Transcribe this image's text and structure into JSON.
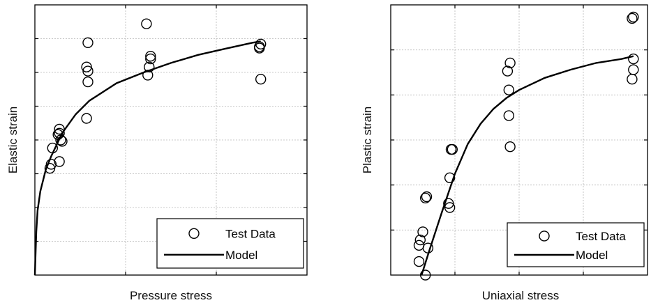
{
  "chart_data": [
    {
      "type": "scatter",
      "title": "",
      "xlabel": "Pressure stress",
      "ylabel": "Elastic strain",
      "xlim": [
        0,
        1
      ],
      "ylim": [
        0,
        1
      ],
      "grid": true,
      "legend": {
        "position": "bottom-right",
        "entries": [
          "Test Data",
          "Model"
        ]
      },
      "series": [
        {
          "name": "Test Data",
          "kind": "scatter",
          "x": [
            0.055,
            0.06,
            0.065,
            0.09,
            0.09,
            0.1,
            0.095,
            0.09,
            0.085,
            0.19,
            0.195,
            0.195,
            0.19,
            0.195,
            0.415,
            0.42,
            0.425,
            0.425,
            0.41,
            0.83,
            0.825,
            0.825,
            0.83
          ],
          "y": [
            0.395,
            0.41,
            0.47,
            0.42,
            0.525,
            0.495,
            0.5,
            0.54,
            0.52,
            0.58,
            0.715,
            0.755,
            0.77,
            0.86,
            0.74,
            0.77,
            0.8,
            0.81,
            0.93,
            0.725,
            0.84,
            0.845,
            0.855
          ]
        },
        {
          "name": "Model",
          "kind": "line",
          "x": [
            0,
            0.005,
            0.01,
            0.02,
            0.04,
            0.06,
            0.1,
            0.15,
            0.2,
            0.3,
            0.4,
            0.5,
            0.6,
            0.7,
            0.8,
            0.83
          ],
          "y": [
            0,
            0.16,
            0.24,
            0.31,
            0.39,
            0.44,
            0.525,
            0.595,
            0.645,
            0.71,
            0.75,
            0.785,
            0.815,
            0.838,
            0.86,
            0.865
          ]
        }
      ]
    },
    {
      "type": "scatter",
      "title": "",
      "xlabel": "Uniaxial stress",
      "ylabel": "Plastic strain",
      "xlim": [
        0,
        1
      ],
      "ylim": [
        0,
        1
      ],
      "grid": true,
      "legend": {
        "position": "bottom-right",
        "entries": [
          "Test Data",
          "Model"
        ]
      },
      "series": [
        {
          "name": "Test Data",
          "kind": "scatter",
          "x": [
            0.11,
            0.11,
            0.115,
            0.125,
            0.135,
            0.145,
            0.135,
            0.14,
            0.23,
            0.235,
            0.24,
            0.225,
            0.23,
            0.465,
            0.46,
            0.46,
            0.455,
            0.465,
            0.94,
            0.945,
            0.945,
            0.94,
            0.945
          ],
          "y": [
            0.05,
            0.11,
            0.13,
            0.16,
            0.0,
            0.1,
            0.285,
            0.29,
            0.25,
            0.465,
            0.465,
            0.265,
            0.36,
            0.475,
            0.59,
            0.685,
            0.755,
            0.785,
            0.725,
            0.76,
            0.8,
            0.95,
            0.955
          ]
        },
        {
          "name": "Model",
          "kind": "line",
          "x": [
            0.12,
            0.15,
            0.2,
            0.25,
            0.3,
            0.35,
            0.4,
            0.45,
            0.5,
            0.6,
            0.7,
            0.8,
            0.9,
            0.945
          ],
          "y": [
            0.0,
            0.09,
            0.235,
            0.375,
            0.485,
            0.56,
            0.615,
            0.655,
            0.685,
            0.73,
            0.76,
            0.785,
            0.8,
            0.81
          ]
        }
      ]
    }
  ]
}
